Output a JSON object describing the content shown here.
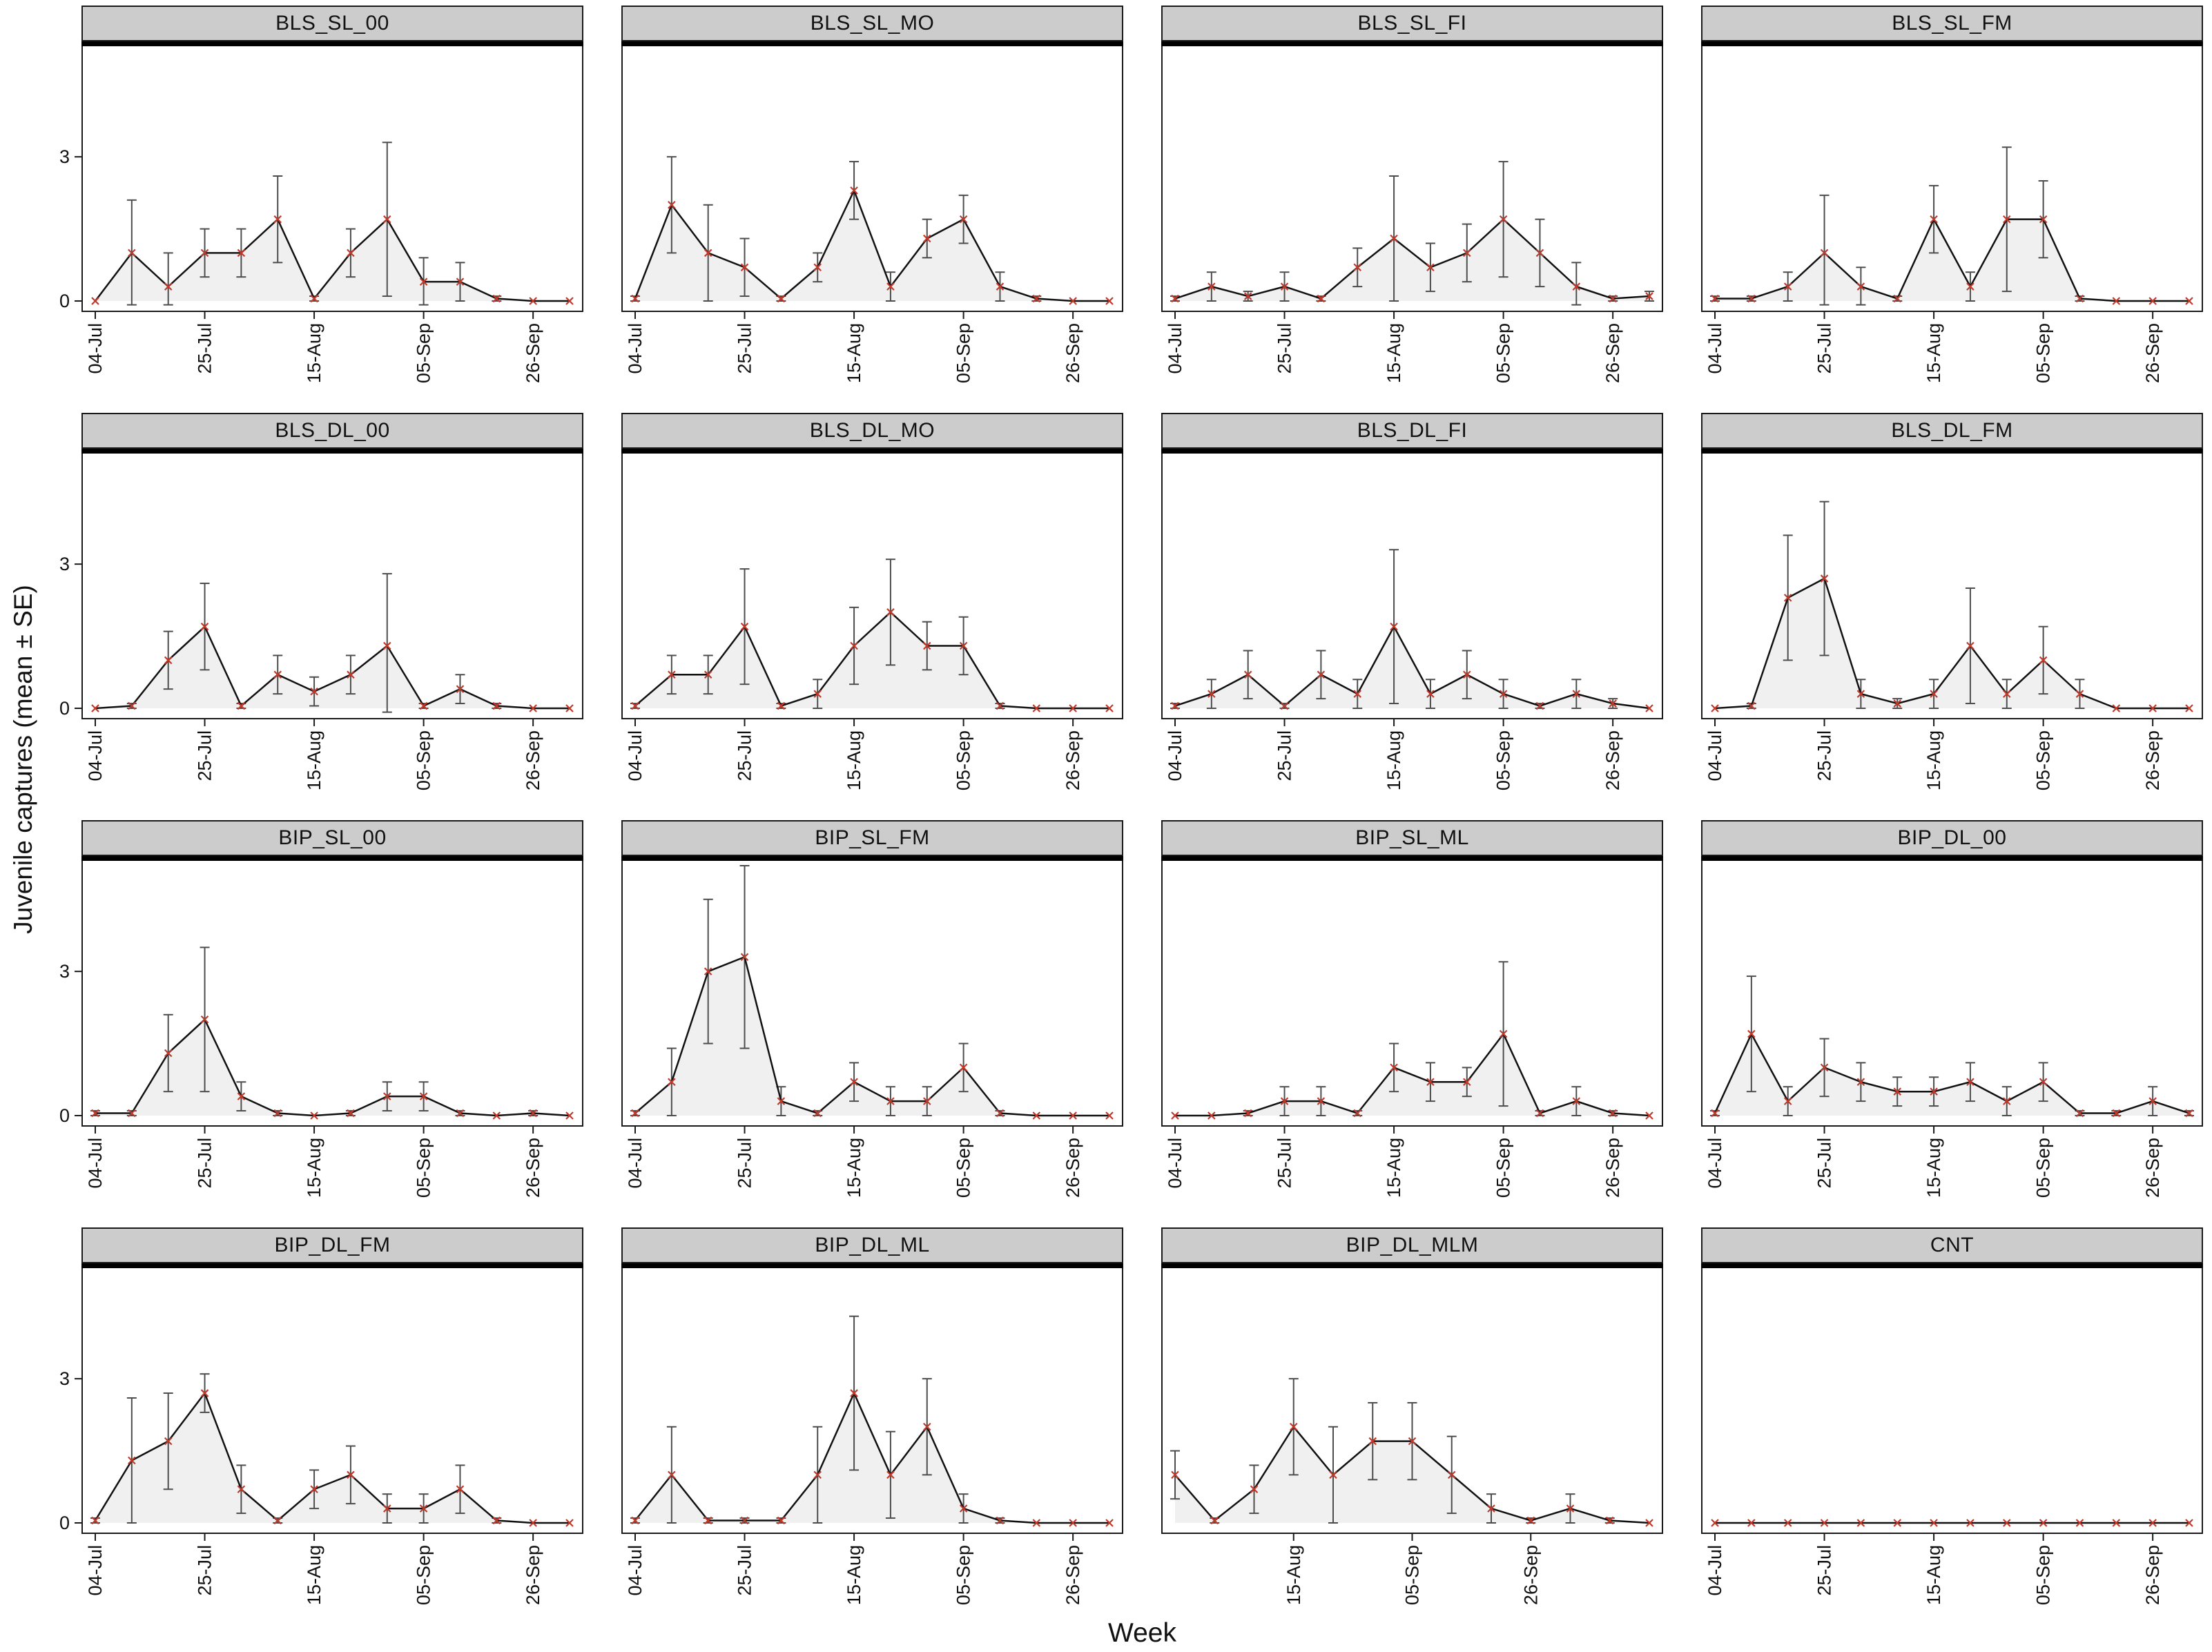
{
  "figure": {
    "ylabel": "Juvenile captures (mean ± SE)",
    "xlabel": "Week"
  },
  "colors": {
    "line": "#111111",
    "area": "#ededed",
    "error_bar": "#4d4d4d",
    "marker": "#c0392b",
    "strip_bg": "#cccccc",
    "border": "#1a1a1a"
  },
  "chart_data": {
    "type": "line",
    "ylim": [
      0,
      5
    ],
    "yticks": [
      0,
      3
    ],
    "x_tick_labels": [
      "04-Jul",
      "25-Jul",
      "15-Aug",
      "05-Sep",
      "26-Sep"
    ],
    "legend": "none",
    "grid": "off",
    "marker_style": "red x with gray SE error bars, light gray area fill under black line",
    "panels": [
      {
        "title": "BLS_SL_00",
        "ticks": [
          [
            0,
            "04-Jul"
          ],
          [
            3,
            "25-Jul"
          ],
          [
            6,
            "15-Aug"
          ],
          [
            9,
            "05-Sep"
          ],
          [
            12,
            "26-Sep"
          ]
        ],
        "mean": [
          0,
          1.0,
          0.3,
          1.0,
          1.0,
          1.7,
          0.05,
          1.0,
          1.7,
          0.4,
          0.4,
          0.05,
          0,
          0
        ],
        "se": [
          0,
          1.1,
          0.7,
          0.5,
          0.5,
          0.9,
          0.05,
          0.5,
          1.6,
          0.5,
          0.4,
          0.05,
          0,
          0
        ]
      },
      {
        "title": "BLS_SL_MO",
        "ticks": [
          [
            0,
            "04-Jul"
          ],
          [
            3,
            "25-Jul"
          ],
          [
            6,
            "15-Aug"
          ],
          [
            9,
            "05-Sep"
          ],
          [
            12,
            "26-Sep"
          ]
        ],
        "mean": [
          0.05,
          2.0,
          1.0,
          0.7,
          0.05,
          0.7,
          2.3,
          0.3,
          1.3,
          1.7,
          0.3,
          0.05,
          0,
          0
        ],
        "se": [
          0.05,
          1.0,
          1.0,
          0.6,
          0.05,
          0.3,
          0.6,
          0.3,
          0.4,
          0.5,
          0.3,
          0.05,
          0,
          0
        ]
      },
      {
        "title": "BLS_SL_FI",
        "ticks": [
          [
            0,
            "04-Jul"
          ],
          [
            3,
            "25-Jul"
          ],
          [
            6,
            "15-Aug"
          ],
          [
            9,
            "05-Sep"
          ],
          [
            12,
            "26-Sep"
          ]
        ],
        "mean": [
          0.05,
          0.3,
          0.1,
          0.3,
          0.05,
          0.7,
          1.3,
          0.7,
          1.0,
          1.7,
          1.0,
          0.3,
          0.05,
          0.1
        ],
        "se": [
          0.05,
          0.3,
          0.1,
          0.3,
          0.05,
          0.4,
          1.3,
          0.5,
          0.6,
          1.2,
          0.7,
          0.5,
          0.05,
          0.1
        ]
      },
      {
        "title": "BLS_SL_FM",
        "ticks": [
          [
            0,
            "04-Jul"
          ],
          [
            3,
            "25-Jul"
          ],
          [
            6,
            "15-Aug"
          ],
          [
            9,
            "05-Sep"
          ],
          [
            12,
            "26-Sep"
          ]
        ],
        "mean": [
          0.05,
          0.05,
          0.3,
          1.0,
          0.3,
          0.05,
          1.7,
          0.3,
          1.7,
          1.7,
          0.05,
          0,
          0,
          0
        ],
        "se": [
          0.05,
          0.05,
          0.3,
          1.2,
          0.4,
          0.05,
          0.7,
          0.3,
          1.5,
          0.8,
          0.05,
          0,
          0,
          0
        ]
      },
      {
        "title": "BLS_DL_00",
        "ticks": [
          [
            0,
            "04-Jul"
          ],
          [
            3,
            "25-Jul"
          ],
          [
            6,
            "15-Aug"
          ],
          [
            9,
            "05-Sep"
          ],
          [
            12,
            "26-Sep"
          ]
        ],
        "mean": [
          0,
          0.05,
          1.0,
          1.7,
          0.05,
          0.7,
          0.35,
          0.7,
          1.3,
          0.05,
          0.4,
          0.05,
          0,
          0
        ],
        "se": [
          0,
          0.05,
          0.6,
          0.9,
          0.05,
          0.4,
          0.3,
          0.4,
          1.5,
          0.05,
          0.3,
          0.05,
          0,
          0
        ]
      },
      {
        "title": "BLS_DL_MO",
        "ticks": [
          [
            0,
            "04-Jul"
          ],
          [
            3,
            "25-Jul"
          ],
          [
            6,
            "15-Aug"
          ],
          [
            9,
            "05-Sep"
          ],
          [
            12,
            "26-Sep"
          ]
        ],
        "mean": [
          0.05,
          0.7,
          0.7,
          1.7,
          0.05,
          0.3,
          1.3,
          2.0,
          1.3,
          1.3,
          0.05,
          0,
          0,
          0
        ],
        "se": [
          0.05,
          0.4,
          0.4,
          1.2,
          0.05,
          0.3,
          0.8,
          1.1,
          0.5,
          0.6,
          0.05,
          0,
          0,
          0
        ]
      },
      {
        "title": "BLS_DL_FI",
        "ticks": [
          [
            0,
            "04-Jul"
          ],
          [
            3,
            "25-Jul"
          ],
          [
            6,
            "15-Aug"
          ],
          [
            9,
            "05-Sep"
          ],
          [
            12,
            "26-Sep"
          ]
        ],
        "mean": [
          0.05,
          0.3,
          0.7,
          0.05,
          0.7,
          0.3,
          1.7,
          0.3,
          0.7,
          0.3,
          0.05,
          0.3,
          0.1,
          0
        ],
        "se": [
          0.05,
          0.3,
          0.5,
          0.05,
          0.5,
          0.3,
          1.6,
          0.3,
          0.5,
          0.3,
          0.05,
          0.3,
          0.1,
          0
        ]
      },
      {
        "title": "BLS_DL_FM",
        "ticks": [
          [
            0,
            "04-Jul"
          ],
          [
            3,
            "25-Jul"
          ],
          [
            6,
            "15-Aug"
          ],
          [
            9,
            "05-Sep"
          ],
          [
            12,
            "26-Sep"
          ]
        ],
        "mean": [
          0,
          0.05,
          2.3,
          2.7,
          0.3,
          0.1,
          0.3,
          1.3,
          0.3,
          1.0,
          0.3,
          0,
          0,
          0
        ],
        "se": [
          0,
          0.05,
          1.3,
          1.6,
          0.3,
          0.1,
          0.3,
          1.2,
          0.3,
          0.7,
          0.3,
          0,
          0,
          0
        ]
      },
      {
        "title": "BIP_SL_00",
        "ticks": [
          [
            0,
            "04-Jul"
          ],
          [
            3,
            "25-Jul"
          ],
          [
            6,
            "15-Aug"
          ],
          [
            9,
            "05-Sep"
          ],
          [
            12,
            "26-Sep"
          ]
        ],
        "mean": [
          0.05,
          0.05,
          1.3,
          2.0,
          0.4,
          0.05,
          0,
          0.05,
          0.4,
          0.4,
          0.05,
          0,
          0.05,
          0
        ],
        "se": [
          0.05,
          0.05,
          0.8,
          1.5,
          0.3,
          0.05,
          0,
          0.05,
          0.3,
          0.3,
          0.05,
          0,
          0.05,
          0
        ]
      },
      {
        "title": "BIP_SL_FM",
        "ticks": [
          [
            0,
            "04-Jul"
          ],
          [
            3,
            "25-Jul"
          ],
          [
            6,
            "15-Aug"
          ],
          [
            9,
            "05-Sep"
          ],
          [
            12,
            "26-Sep"
          ]
        ],
        "mean": [
          0.05,
          0.7,
          3.0,
          3.3,
          0.3,
          0.05,
          0.7,
          0.3,
          0.3,
          1.0,
          0.05,
          0,
          0,
          0
        ],
        "se": [
          0.05,
          0.7,
          1.5,
          1.9,
          0.3,
          0.05,
          0.4,
          0.3,
          0.3,
          0.5,
          0.05,
          0,
          0,
          0
        ]
      },
      {
        "title": "BIP_SL_ML",
        "ticks": [
          [
            0,
            "04-Jul"
          ],
          [
            3,
            "25-Jul"
          ],
          [
            6,
            "15-Aug"
          ],
          [
            9,
            "05-Sep"
          ],
          [
            12,
            "26-Sep"
          ]
        ],
        "mean": [
          0,
          0,
          0.05,
          0.3,
          0.3,
          0.05,
          1.0,
          0.7,
          0.7,
          1.7,
          0.05,
          0.3,
          0.05,
          0
        ],
        "se": [
          0,
          0,
          0.05,
          0.3,
          0.3,
          0.05,
          0.5,
          0.4,
          0.3,
          1.5,
          0.05,
          0.3,
          0.05,
          0
        ]
      },
      {
        "title": "BIP_DL_00",
        "ticks": [
          [
            0,
            "04-Jul"
          ],
          [
            3,
            "25-Jul"
          ],
          [
            6,
            "15-Aug"
          ],
          [
            9,
            "05-Sep"
          ],
          [
            12,
            "26-Sep"
          ]
        ],
        "mean": [
          0.05,
          1.7,
          0.3,
          1.0,
          0.7,
          0.5,
          0.5,
          0.7,
          0.3,
          0.7,
          0.05,
          0.05,
          0.3,
          0.05
        ],
        "se": [
          0.05,
          1.2,
          0.3,
          0.6,
          0.4,
          0.3,
          0.3,
          0.4,
          0.3,
          0.4,
          0.05,
          0.05,
          0.3,
          0.05
        ]
      },
      {
        "title": "BIP_DL_FM",
        "ticks": [
          [
            0,
            "04-Jul"
          ],
          [
            3,
            "25-Jul"
          ],
          [
            6,
            "15-Aug"
          ],
          [
            9,
            "05-Sep"
          ],
          [
            12,
            "26-Sep"
          ]
        ],
        "mean": [
          0.05,
          1.3,
          1.7,
          2.7,
          0.7,
          0.05,
          0.7,
          1.0,
          0.3,
          0.3,
          0.7,
          0.05,
          0,
          0
        ],
        "se": [
          0.05,
          1.3,
          1.0,
          0.4,
          0.5,
          0.05,
          0.4,
          0.6,
          0.3,
          0.3,
          0.5,
          0.05,
          0,
          0
        ]
      },
      {
        "title": "BIP_DL_ML",
        "ticks": [
          [
            0,
            "04-Jul"
          ],
          [
            3,
            "25-Jul"
          ],
          [
            6,
            "15-Aug"
          ],
          [
            9,
            "05-Sep"
          ],
          [
            12,
            "26-Sep"
          ]
        ],
        "mean": [
          0.05,
          1.0,
          0.05,
          0.05,
          0.05,
          1.0,
          2.7,
          1.0,
          2.0,
          0.3,
          0.05,
          0,
          0,
          0
        ],
        "se": [
          0.05,
          1.0,
          0.05,
          0.05,
          0.05,
          1.0,
          1.6,
          0.9,
          1.0,
          0.3,
          0.05,
          0,
          0,
          0
        ]
      },
      {
        "title": "BIP_DL_MLM",
        "ticks": [
          [
            3,
            "15-Aug"
          ],
          [
            6,
            "05-Sep"
          ],
          [
            9,
            "26-Sep"
          ]
        ],
        "mean": [
          1.0,
          0.05,
          0.7,
          2.0,
          1.0,
          1.7,
          1.7,
          1.0,
          0.3,
          0.05,
          0.3,
          0.05,
          0
        ],
        "se": [
          0.5,
          0.05,
          0.5,
          1.0,
          1.0,
          0.8,
          0.8,
          0.8,
          0.3,
          0.05,
          0.3,
          0.05,
          0
        ]
      },
      {
        "title": "CNT",
        "ticks": [
          [
            0,
            "04-Jul"
          ],
          [
            3,
            "25-Jul"
          ],
          [
            6,
            "15-Aug"
          ],
          [
            9,
            "05-Sep"
          ],
          [
            12,
            "26-Sep"
          ]
        ],
        "mean": [
          0,
          0,
          0,
          0,
          0,
          0,
          0,
          0,
          0,
          0,
          0,
          0,
          0,
          0
        ],
        "se": [
          0,
          0,
          0,
          0,
          0,
          0,
          0,
          0,
          0,
          0,
          0,
          0,
          0,
          0
        ]
      }
    ]
  }
}
